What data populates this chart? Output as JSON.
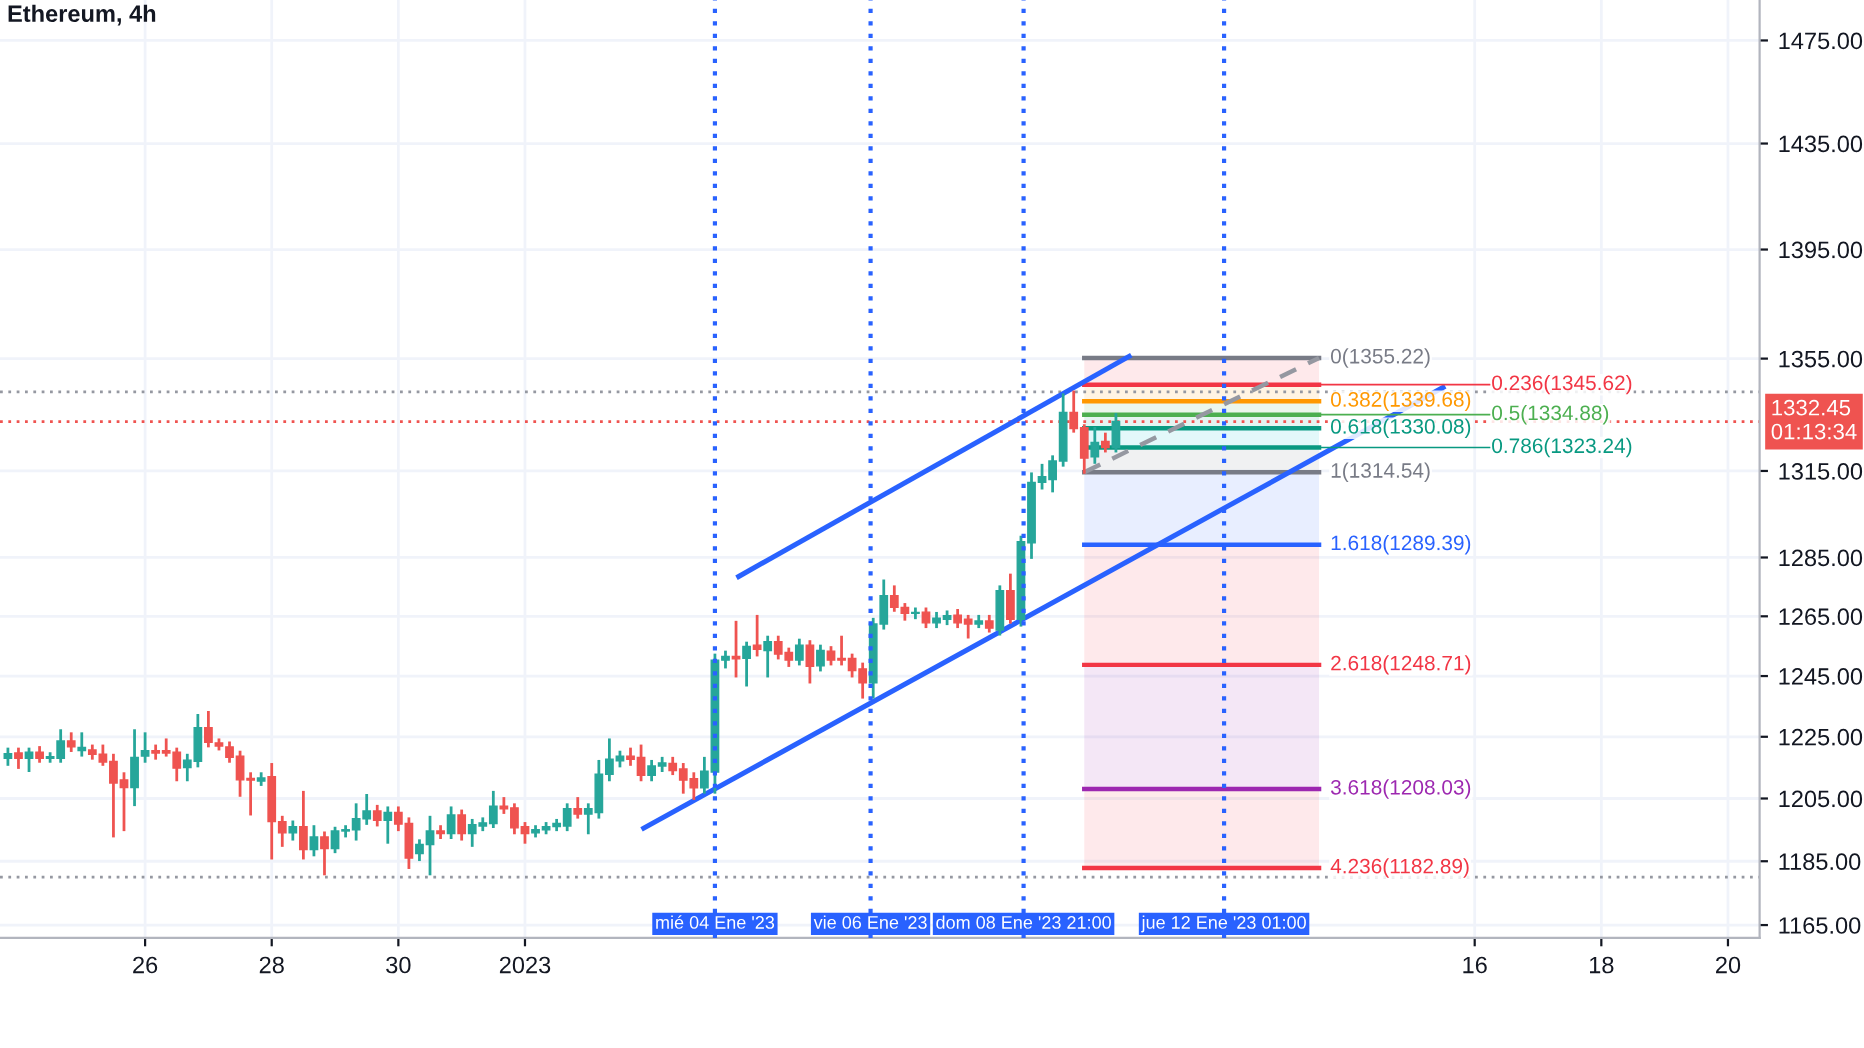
{
  "chart_data": {
    "type": "candlestick",
    "title": "Ethereum, 4h",
    "x": [
      "2022-12-23T20:00",
      "2022-12-24T00:00",
      "2022-12-24T04:00",
      "2022-12-24T08:00",
      "2022-12-24T12:00",
      "2022-12-24T16:00",
      "2022-12-24T20:00",
      "2022-12-25T00:00",
      "2022-12-25T04:00",
      "2022-12-25T08:00",
      "2022-12-25T12:00",
      "2022-12-25T16:00",
      "2022-12-25T20:00",
      "2022-12-26T00:00",
      "2022-12-26T04:00",
      "2022-12-26T08:00",
      "2022-12-26T12:00",
      "2022-12-26T16:00",
      "2022-12-26T20:00",
      "2022-12-27T00:00",
      "2022-12-27T04:00",
      "2022-12-27T08:00",
      "2022-12-27T12:00",
      "2022-12-27T16:00",
      "2022-12-27T20:00",
      "2022-12-28T00:00",
      "2022-12-28T04:00",
      "2022-12-28T08:00",
      "2022-12-28T12:00",
      "2022-12-28T16:00",
      "2022-12-28T20:00",
      "2022-12-29T00:00",
      "2022-12-29T04:00",
      "2022-12-29T08:00",
      "2022-12-29T12:00",
      "2022-12-29T16:00",
      "2022-12-29T20:00",
      "2022-12-30T00:00",
      "2022-12-30T04:00",
      "2022-12-30T08:00",
      "2022-12-30T12:00",
      "2022-12-30T16:00",
      "2022-12-30T20:00",
      "2022-12-31T00:00",
      "2022-12-31T04:00",
      "2022-12-31T08:00",
      "2022-12-31T12:00",
      "2022-12-31T16:00",
      "2022-12-31T20:00",
      "2023-01-01T00:00",
      "2023-01-01T04:00",
      "2023-01-01T08:00",
      "2023-01-01T12:00",
      "2023-01-01T16:00",
      "2023-01-01T20:00",
      "2023-01-02T00:00",
      "2023-01-02T04:00",
      "2023-01-02T08:00",
      "2023-01-02T12:00",
      "2023-01-02T16:00",
      "2023-01-02T20:00",
      "2023-01-03T00:00",
      "2023-01-03T04:00",
      "2023-01-03T08:00",
      "2023-01-03T12:00",
      "2023-01-03T16:00",
      "2023-01-03T20:00",
      "2023-01-04T00:00",
      "2023-01-04T04:00",
      "2023-01-04T08:00",
      "2023-01-04T12:00",
      "2023-01-04T16:00",
      "2023-01-04T20:00",
      "2023-01-05T00:00",
      "2023-01-05T04:00",
      "2023-01-05T08:00",
      "2023-01-05T12:00",
      "2023-01-05T16:00",
      "2023-01-05T20:00",
      "2023-01-06T00:00",
      "2023-01-06T04:00",
      "2023-01-06T08:00",
      "2023-01-06T12:00",
      "2023-01-06T16:00",
      "2023-01-06T20:00",
      "2023-01-07T00:00",
      "2023-01-07T04:00",
      "2023-01-07T08:00",
      "2023-01-07T12:00",
      "2023-01-07T16:00",
      "2023-01-07T20:00",
      "2023-01-08T00:00",
      "2023-01-08T04:00",
      "2023-01-08T08:00",
      "2023-01-08T12:00",
      "2023-01-08T16:00",
      "2023-01-08T20:00",
      "2023-01-09T00:00",
      "2023-01-09T04:00",
      "2023-01-09T08:00",
      "2023-01-09T12:00",
      "2023-01-09T16:00",
      "2023-01-09T20:00",
      "2023-01-10T00:00",
      "2023-01-10T04:00",
      "2023-01-10T08:00"
    ],
    "ohlc": [
      [
        1218,
        1221,
        1216,
        1219.5
      ],
      [
        1219.7,
        1221,
        1215,
        1218
      ],
      [
        1218,
        1221,
        1214,
        1220
      ],
      [
        1220,
        1221.5,
        1217,
        1218
      ],
      [
        1218,
        1219.5,
        1217,
        1218.5
      ],
      [
        1218,
        1227,
        1217,
        1223.6
      ],
      [
        1223.6,
        1226,
        1220.5,
        1221.7
      ],
      [
        1220.5,
        1226,
        1219,
        1221.5
      ],
      [
        1220.7,
        1222,
        1218,
        1219.3
      ],
      [
        1219.3,
        1222,
        1216,
        1216.8
      ],
      [
        1217,
        1219,
        1193,
        1210
      ],
      [
        1211,
        1213,
        1195,
        1208.5
      ],
      [
        1208.5,
        1227,
        1203,
        1218.3
      ],
      [
        1218.7,
        1226,
        1217,
        1220.5
      ],
      [
        1220.5,
        1222,
        1218,
        1219.7
      ],
      [
        1220.5,
        1224,
        1219,
        1219.7
      ],
      [
        1220,
        1221,
        1211,
        1214.8
      ],
      [
        1215,
        1219,
        1211,
        1217.4
      ],
      [
        1217,
        1232,
        1215.5,
        1228
      ],
      [
        1228,
        1233,
        1222,
        1223.2
      ],
      [
        1223,
        1224,
        1221,
        1222
      ],
      [
        1221.7,
        1223,
        1217,
        1218.3
      ],
      [
        1218.7,
        1220,
        1206,
        1211
      ],
      [
        1211.5,
        1213,
        1200,
        1210.9
      ],
      [
        1210.6,
        1213,
        1209.5,
        1211.6
      ],
      [
        1212,
        1216,
        1186,
        1197.6
      ],
      [
        1197.6,
        1199,
        1190,
        1194
      ],
      [
        1194,
        1197.5,
        1192,
        1196
      ],
      [
        1196,
        1207,
        1186,
        1188.7
      ],
      [
        1188.7,
        1196,
        1187,
        1192.7
      ],
      [
        1192.7,
        1194,
        1181,
        1189
      ],
      [
        1189,
        1195.5,
        1188,
        1194.6
      ],
      [
        1194.6,
        1196,
        1193,
        1195
      ],
      [
        1195,
        1203,
        1192,
        1198.5
      ],
      [
        1198.5,
        1206,
        1197,
        1201
      ],
      [
        1201,
        1202.5,
        1196.5,
        1198
      ],
      [
        1198,
        1202,
        1191,
        1200.5
      ],
      [
        1200.5,
        1202,
        1195,
        1196.8
      ],
      [
        1197,
        1198.5,
        1183,
        1186
      ],
      [
        1187.4,
        1191.5,
        1185.5,
        1190.3
      ],
      [
        1190.3,
        1199,
        1181,
        1194.6
      ],
      [
        1194.6,
        1196,
        1192.5,
        1193.8
      ],
      [
        1193.8,
        1202,
        1192.5,
        1199.7
      ],
      [
        1199.7,
        1201,
        1192,
        1193.8
      ],
      [
        1193.8,
        1198,
        1190,
        1196.6
      ],
      [
        1196.2,
        1198.5,
        1195,
        1197.2
      ],
      [
        1197,
        1207,
        1196,
        1202.5
      ],
      [
        1202.5,
        1205,
        1200.5,
        1201.7
      ],
      [
        1202,
        1203,
        1194,
        1195.6
      ],
      [
        1196,
        1197,
        1191,
        1193.8
      ],
      [
        1194,
        1196,
        1193,
        1195
      ],
      [
        1195,
        1197,
        1194,
        1196
      ],
      [
        1196,
        1198,
        1195,
        1197
      ],
      [
        1196.2,
        1203,
        1195,
        1201.7
      ],
      [
        1201.7,
        1205,
        1199,
        1200
      ],
      [
        1200,
        1203,
        1194,
        1201.7
      ],
      [
        1200.5,
        1217,
        1199,
        1212.8
      ],
      [
        1212.8,
        1224,
        1211,
        1217.7
      ],
      [
        1217.2,
        1220,
        1215.5,
        1218.7
      ],
      [
        1218.7,
        1221,
        1216,
        1217.7
      ],
      [
        1218.3,
        1222,
        1211,
        1212.5
      ],
      [
        1212.5,
        1217,
        1211,
        1215.5
      ],
      [
        1215.5,
        1218,
        1214,
        1216.5
      ],
      [
        1216.3,
        1218,
        1213,
        1214
      ],
      [
        1214.5,
        1216,
        1207,
        1210.9
      ],
      [
        1211.4,
        1213,
        1205,
        1208.4
      ],
      [
        1208.4,
        1218,
        1207,
        1213.8
      ],
      [
        1213.5,
        1252,
        1207,
        1250.3
      ],
      [
        1250.3,
        1253,
        1248,
        1251.5
      ],
      [
        1251.5,
        1263,
        1245,
        1250.7
      ],
      [
        1250.9,
        1256,
        1242,
        1254.9
      ],
      [
        1255.3,
        1265,
        1252,
        1253.9
      ],
      [
        1253.5,
        1258,
        1245,
        1256.5
      ],
      [
        1256.5,
        1258,
        1251,
        1252.3
      ],
      [
        1252.9,
        1254,
        1248.5,
        1250.3
      ],
      [
        1250.3,
        1257,
        1249,
        1255.3
      ],
      [
        1255.3,
        1256.5,
        1243,
        1248.2
      ],
      [
        1248.4,
        1255,
        1247,
        1253.5
      ],
      [
        1253.3,
        1254.5,
        1249,
        1250.3
      ],
      [
        1250.9,
        1258,
        1249,
        1250.3
      ],
      [
        1250.9,
        1252,
        1245,
        1246.8
      ],
      [
        1247.4,
        1249,
        1238,
        1242.8
      ],
      [
        1242.8,
        1264,
        1238,
        1262.4
      ],
      [
        1262.4,
        1277,
        1261,
        1272
      ],
      [
        1272,
        1275,
        1267,
        1268
      ],
      [
        1268,
        1269,
        1264,
        1266
      ],
      [
        1266,
        1267.5,
        1264.5,
        1266.3
      ],
      [
        1266.4,
        1267.5,
        1261.5,
        1262.8
      ],
      [
        1262.8,
        1266,
        1261.5,
        1264.4
      ],
      [
        1264,
        1266.5,
        1262.5,
        1265.2
      ],
      [
        1265.4,
        1267,
        1261.5,
        1262.8
      ],
      [
        1264,
        1265,
        1258,
        1262.4
      ],
      [
        1262.4,
        1265,
        1261.5,
        1263.4
      ],
      [
        1263.4,
        1265,
        1260,
        1261
      ],
      [
        1260.4,
        1275,
        1259,
        1273.7
      ],
      [
        1273.7,
        1279,
        1263,
        1264
      ],
      [
        1264,
        1292,
        1262,
        1290.4
      ],
      [
        1290,
        1314,
        1285,
        1311
      ],
      [
        1311,
        1317,
        1309,
        1313
      ],
      [
        1312,
        1320,
        1308,
        1318.5
      ],
      [
        1318.5,
        1342,
        1317,
        1335.7
      ],
      [
        1335.7,
        1343,
        1329,
        1330
      ],
      [
        1330.3,
        1331,
        1314.5,
        1319.5
      ],
      [
        1320,
        1330,
        1318,
        1325
      ],
      [
        1325.4,
        1328,
        1322,
        1323.2
      ],
      [
        1323.2,
        1335,
        1322,
        1332.45
      ]
    ],
    "colors": [
      "#26a69a",
      "#ef5350",
      "#26a69a",
      "#ef5350",
      "#26a69a",
      "#26a69a",
      "#ef5350",
      "#26a69a",
      "#ef5350",
      "#ef5350",
      "#ef5350",
      "#ef5350",
      "#26a69a",
      "#26a69a",
      "#ef5350",
      "#ef5350",
      "#ef5350",
      "#26a69a",
      "#26a69a",
      "#ef5350",
      "#ef5350",
      "#ef5350",
      "#ef5350",
      "#ef5350",
      "#26a69a",
      "#ef5350",
      "#ef5350",
      "#26a69a",
      "#ef5350",
      "#26a69a",
      "#ef5350",
      "#26a69a",
      "#26a69a",
      "#26a69a",
      "#26a69a",
      "#ef5350",
      "#26a69a",
      "#ef5350",
      "#ef5350",
      "#26a69a",
      "#26a69a",
      "#ef5350",
      "#26a69a",
      "#ef5350",
      "#26a69a",
      "#26a69a",
      "#26a69a",
      "#ef5350",
      "#ef5350",
      "#ef5350",
      "#26a69a",
      "#26a69a",
      "#26a69a",
      "#26a69a",
      "#ef5350",
      "#26a69a",
      "#26a69a",
      "#26a69a",
      "#26a69a",
      "#ef5350",
      "#ef5350",
      "#26a69a",
      "#26a69a",
      "#ef5350",
      "#ef5350",
      "#ef5350",
      "#26a69a",
      "#26a69a",
      "#26a69a",
      "#ef5350",
      "#26a69a",
      "#ef5350",
      "#26a69a",
      "#ef5350",
      "#ef5350",
      "#26a69a",
      "#ef5350",
      "#26a69a",
      "#ef5350",
      "#ef5350",
      "#ef5350",
      "#ef5350",
      "#26a69a",
      "#26a69a",
      "#ef5350",
      "#ef5350",
      "#26a69a",
      "#ef5350",
      "#26a69a",
      "#26a69a",
      "#ef5350",
      "#ef5350",
      "#26a69a",
      "#ef5350",
      "#26a69a",
      "#ef5350",
      "#26a69a",
      "#26a69a",
      "#26a69a",
      "#26a69a",
      "#26a69a",
      "#ef5350",
      "#ef5350",
      "#26a69a",
      "#ef5350",
      "#26a69a"
    ],
    "series": [
      {
        "type": "line",
        "color": "#787b86",
        "x": [
          "2023-01-09T20:00",
          "2023-01-13T13:00"
        ],
        "values": [
          1355.22,
          1355.22
        ]
      },
      {
        "type": "line",
        "color": "#f23645",
        "x": [
          "2023-01-09T20:00",
          "2023-01-13T13:00"
        ],
        "values": [
          1345.62,
          1345.62
        ]
      },
      {
        "type": "line",
        "color": "#ff9800",
        "x": [
          "2023-01-09T20:00",
          "2023-01-13T13:00"
        ],
        "values": [
          1339.68,
          1339.68
        ]
      },
      {
        "type": "line",
        "color": "#4caf50",
        "x": [
          "2023-01-09T20:00",
          "2023-01-13T13:00"
        ],
        "values": [
          1334.88,
          1334.88
        ]
      },
      {
        "type": "line",
        "color": "#089981",
        "x": [
          "2023-01-09T20:00",
          "2023-01-13T13:00"
        ],
        "values": [
          1330.08,
          1330.08
        ]
      },
      {
        "type": "line",
        "color": "#089981",
        "x": [
          "2023-01-09T20:00",
          "2023-01-13T13:00"
        ],
        "values": [
          1323.24,
          1323.24
        ]
      },
      {
        "type": "line",
        "color": "#787b86",
        "x": [
          "2023-01-09T20:00",
          "2023-01-13T13:00"
        ],
        "values": [
          1314.54,
          1314.54
        ]
      },
      {
        "type": "line",
        "color": "#2962ff",
        "x": [
          "2023-01-09T20:00",
          "2023-01-13T13:00"
        ],
        "values": [
          1289.39,
          1289.39
        ]
      },
      {
        "type": "line",
        "color": "#f23645",
        "x": [
          "2023-01-09T20:00",
          "2023-01-13T13:00"
        ],
        "values": [
          1248.71,
          1248.71
        ]
      },
      {
        "type": "line",
        "color": "#9c27b0",
        "x": [
          "2023-01-09T20:00",
          "2023-01-13T13:00"
        ],
        "values": [
          1208.03,
          1208.03
        ]
      },
      {
        "type": "line",
        "color": "#f23645",
        "x": [
          "2023-01-09T20:00",
          "2023-01-13T13:00"
        ],
        "values": [
          1182.89,
          1182.89
        ]
      },
      {
        "type": "line",
        "color": "#9598a1",
        "line_style": "dashed",
        "x": [
          "2023-01-09T20:00",
          "2023-01-13T13:00"
        ],
        "values": [
          1314.54,
          1355.22
        ]
      },
      {
        "type": "line",
        "color": "#2962ff",
        "x": [
          "2023-01-04T09:00",
          "2023-01-10T13:00"
        ],
        "values": [
          1278.5,
          1355.8
        ]
      },
      {
        "type": "line",
        "color": "#2962ff",
        "x": [
          "2023-01-02T21:00",
          "2023-01-15T12:00"
        ],
        "values": [
          1195.5,
          1344.6
        ]
      }
    ],
    "annotations": [
      {
        "text": "0(1355.22)",
        "x": "2023-01-13T13:00",
        "y": 1355.22
      },
      {
        "text": "0.236(1345.62)",
        "x": "2023-01-13T13:00",
        "y": 1345.62
      },
      {
        "text": "0.382(1339.68)",
        "x": "2023-01-13T13:00",
        "y": 1339.68
      },
      {
        "text": "0.5(1334.88)",
        "x": "2023-01-13T13:00",
        "y": 1334.88
      },
      {
        "text": "0.618(1330.08)",
        "x": "2023-01-13T13:00",
        "y": 1330.08
      },
      {
        "text": "0.786(1323.24)",
        "x": "2023-01-13T13:00",
        "y": 1323.24
      },
      {
        "text": "1(1314.54)",
        "x": "2023-01-13T13:00",
        "y": 1314.54
      },
      {
        "text": "1.618(1289.39)",
        "x": "2023-01-13T13:00",
        "y": 1289.39
      },
      {
        "text": "2.618(1248.71)",
        "x": "2023-01-13T13:00",
        "y": 1248.71
      },
      {
        "text": "3.618(1208.03)",
        "x": "2023-01-13T13:00",
        "y": 1208.03
      },
      {
        "text": "4.236(1182.89)",
        "x": "2023-01-13T13:00",
        "y": 1182.89
      }
    ],
    "ref_lines": [
      {
        "axis": "x",
        "value": "2023-01-04T00:00",
        "label": "mié 04 Ene '23",
        "color": "#2962ff",
        "line_style": "dotted"
      },
      {
        "axis": "x",
        "value": "2023-01-06T11:00",
        "label": "vie 06 Ene '23",
        "color": "#2962ff",
        "line_style": "dotted"
      },
      {
        "axis": "x",
        "value": "2023-01-08T21:00",
        "label": "dom 08 Ene '23 21:00",
        "color": "#2962ff",
        "line_style": "dotted"
      },
      {
        "axis": "x",
        "value": "2023-01-12T01:00",
        "label": "jue 12 Ene '23 01:00",
        "color": "#2962ff",
        "line_style": "dotted"
      },
      {
        "axis": "y",
        "value": 1332.45,
        "label": "1332.45\n01:13:34",
        "color": "#ef5350",
        "line_style": "dotted"
      },
      {
        "axis": "y",
        "value": 1343,
        "color": "#9598a1",
        "line_style": "dotted"
      },
      {
        "axis": "y",
        "value": 1180,
        "color": "#9598a1",
        "line_style": "dotted"
      }
    ],
    "bands": [
      {
        "axis": "y",
        "from": 1345.62,
        "to": 1355.22,
        "color": "#f23645"
      },
      {
        "axis": "y",
        "from": 1339.68,
        "to": 1345.62,
        "color": "#ff9800"
      },
      {
        "axis": "y",
        "from": 1334.88,
        "to": 1339.68,
        "color": "#4caf50"
      },
      {
        "axis": "y",
        "from": 1330.08,
        "to": 1334.88,
        "color": "#089981"
      },
      {
        "axis": "y",
        "from": 1323.24,
        "to": 1330.08,
        "color": "#00bcd4"
      },
      {
        "axis": "y",
        "from": 1314.54,
        "to": 1323.24,
        "color": "#787b86"
      },
      {
        "axis": "y",
        "from": 1289.39,
        "to": 1314.54,
        "color": "#2962ff"
      },
      {
        "axis": "y",
        "from": 1248.71,
        "to": 1289.39,
        "color": "#f23645"
      },
      {
        "axis": "y",
        "from": 1208.03,
        "to": 1248.71,
        "color": "#9c27b0"
      },
      {
        "axis": "y",
        "from": 1182.89,
        "to": 1208.03,
        "color": "#f23645"
      }
    ],
    "log": true,
    "xlim": [
      "2022-12-23T17:00",
      "2023-01-20T12:00"
    ],
    "xticks": [
      {
        "value": "2022-12-26",
        "label": "26"
      },
      {
        "value": "2022-12-28",
        "label": "28"
      },
      {
        "value": "2022-12-30",
        "label": "30"
      },
      {
        "value": "2023-01-01",
        "label": "2023"
      },
      {
        "value": "2023-01-16",
        "label": "16"
      },
      {
        "value": "2023-01-18",
        "label": "18"
      },
      {
        "value": "2023-01-20",
        "label": "20"
      }
    ],
    "ylim": [
      1161,
      1491
    ],
    "yticks": [
      {
        "value": 1165,
        "label": "1165.00"
      },
      {
        "value": 1185,
        "label": "1185.00"
      },
      {
        "value": 1205,
        "label": "1205.00"
      },
      {
        "value": 1225,
        "label": "1225.00"
      },
      {
        "value": 1245,
        "label": "1245.00"
      },
      {
        "value": 1265,
        "label": "1265.00"
      },
      {
        "value": 1285,
        "label": "1285.00"
      },
      {
        "value": 1315,
        "label": "1315.00"
      },
      {
        "value": 1355,
        "label": "1355.00"
      },
      {
        "value": 1395,
        "label": "1395.00"
      },
      {
        "value": 1435,
        "label": "1435.00"
      },
      {
        "value": 1475,
        "label": "1475.00"
      }
    ],
    "grid": true
  }
}
